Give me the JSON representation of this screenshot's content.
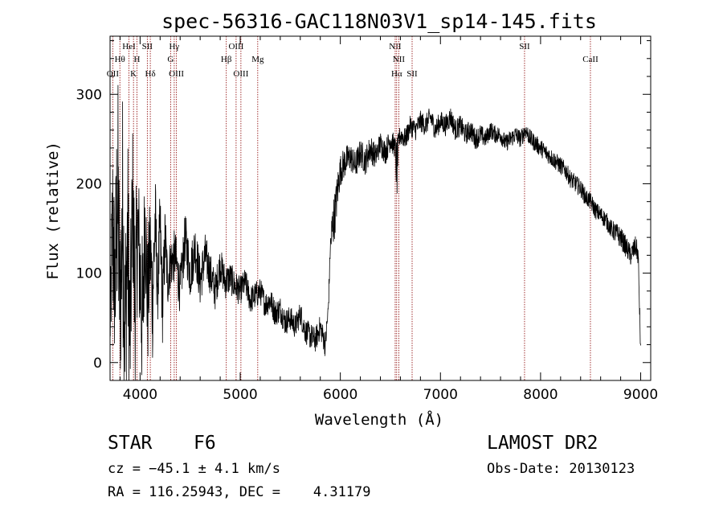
{
  "chart_data": {
    "type": "line",
    "title": "spec-56316-GAC118N03V1_sp14-145.fits",
    "xlabel": "Wavelength (Å)",
    "ylabel": "Flux (relative)",
    "xlim": [
      3700,
      9100
    ],
    "ylim": [
      -20,
      365
    ],
    "x_ticks": [
      4000,
      5000,
      6000,
      7000,
      8000,
      9000
    ],
    "y_ticks": [
      0,
      100,
      200,
      300
    ],
    "grid": false,
    "series_color": "#000000",
    "line_color": "#8b0000",
    "series": [
      {
        "x": [
          3700,
          3725,
          3750,
          3775,
          3800,
          3825,
          3850,
          3875,
          3900,
          3925,
          3950,
          3975,
          4000,
          4025,
          4050,
          4075,
          4100,
          4125,
          4150,
          4175,
          4200,
          4225,
          4250,
          4275,
          4300,
          4350,
          4400,
          4450,
          4500,
          4550,
          4600,
          4650,
          4700,
          4750,
          4800,
          4850,
          4900,
          4950,
          5000,
          5050,
          5100,
          5150,
          5200,
          5250,
          5300,
          5350,
          5400,
          5450,
          5500,
          5550,
          5600,
          5650,
          5700,
          5750,
          5800,
          5850,
          5880,
          5900,
          5920,
          5950,
          5980,
          6000,
          6050,
          6100,
          6150,
          6200,
          6250,
          6300,
          6350,
          6400,
          6450,
          6500,
          6550,
          6563,
          6580,
          6600,
          6650,
          6700,
          6750,
          6800,
          6850,
          6900,
          6950,
          7000,
          7050,
          7100,
          7150,
          7200,
          7250,
          7300,
          7350,
          7400,
          7450,
          7500,
          7550,
          7600,
          7650,
          7700,
          7750,
          7800,
          7850,
          7900,
          7950,
          8000,
          8050,
          8100,
          8150,
          8200,
          8250,
          8300,
          8350,
          8400,
          8450,
          8500,
          8550,
          8600,
          8650,
          8700,
          8750,
          8800,
          8850,
          8900,
          8950,
          8975,
          9000
        ],
        "y": [
          30,
          150,
          80,
          200,
          60,
          170,
          40,
          140,
          20,
          185,
          60,
          150,
          100,
          40,
          170,
          60,
          130,
          70,
          160,
          80,
          150,
          60,
          140,
          90,
          110,
          120,
          80,
          140,
          100,
          130,
          90,
          120,
          100,
          80,
          110,
          90,
          95,
          85,
          80,
          90,
          70,
          75,
          80,
          65,
          70,
          55,
          60,
          45,
          50,
          40,
          55,
          35,
          30,
          25,
          40,
          20,
          60,
          130,
          150,
          170,
          200,
          215,
          225,
          230,
          220,
          235,
          225,
          240,
          230,
          245,
          235,
          250,
          240,
          210,
          245,
          255,
          250,
          265,
          260,
          270,
          265,
          275,
          260,
          270,
          265,
          275,
          260,
          265,
          255,
          260,
          250,
          255,
          250,
          260,
          255,
          255,
          245,
          250,
          255,
          250,
          260,
          250,
          245,
          240,
          235,
          230,
          225,
          220,
          215,
          205,
          200,
          195,
          185,
          180,
          170,
          165,
          160,
          150,
          145,
          140,
          130,
          120,
          130,
          120,
          10
        ],
        "noise": [
          20,
          120,
          90,
          150,
          100,
          140,
          110,
          130,
          100,
          90,
          110,
          80,
          90,
          100,
          70,
          80,
          60,
          70,
          60,
          40,
          50,
          45,
          40,
          30,
          30,
          30,
          28,
          30,
          30,
          28,
          28,
          25,
          24,
          22,
          20,
          20,
          18,
          18,
          16,
          16,
          16,
          16,
          15,
          15,
          15,
          15,
          15,
          15,
          14,
          14,
          14,
          14,
          15,
          14,
          14,
          14,
          12,
          10,
          30,
          25,
          22,
          18,
          18,
          16,
          16,
          16,
          16,
          16,
          14,
          14,
          14,
          14,
          12,
          40,
          12,
          12,
          12,
          12,
          12,
          12,
          12,
          12,
          12,
          12,
          12,
          12,
          12,
          12,
          12,
          12,
          12,
          12,
          10,
          10,
          10,
          10,
          10,
          10,
          10,
          10,
          10,
          10,
          10,
          10,
          10,
          10,
          10,
          10,
          10,
          10,
          10,
          10,
          10,
          10,
          10,
          10,
          10,
          10,
          12,
          12,
          12,
          12,
          12,
          12,
          12
        ]
      }
    ],
    "lines": [
      {
        "label": "OII",
        "x": 3727,
        "row": 3
      },
      {
        "label": "Hθ",
        "x": 3798,
        "row": 2
      },
      {
        "label": "HeI",
        "x": 3889,
        "row": 1
      },
      {
        "label": "K",
        "x": 3934,
        "row": 3
      },
      {
        "label": "H",
        "x": 3969,
        "row": 2
      },
      {
        "label": "SII",
        "x": 4072,
        "row": 1
      },
      {
        "label": "Hδ",
        "x": 4102,
        "row": 3
      },
      {
        "label": "G",
        "x": 4305,
        "row": 2
      },
      {
        "label": "Hγ",
        "x": 4341,
        "row": 1
      },
      {
        "label": "OIII",
        "x": 4363,
        "row": 3
      },
      {
        "label": "Hβ",
        "x": 4861,
        "row": 2
      },
      {
        "label": "OIII",
        "x": 4959,
        "row": 1
      },
      {
        "label": "OIII",
        "x": 5007,
        "row": 3
      },
      {
        "label": "Mg",
        "x": 5175,
        "row": 2
      },
      {
        "label": "NII",
        "x": 6548,
        "row": 1
      },
      {
        "label": "Hα",
        "x": 6563,
        "row": 3
      },
      {
        "label": "NII",
        "x": 6584,
        "row": 2
      },
      {
        "label": "SII",
        "x": 6717,
        "row": 3
      },
      {
        "label": "SII",
        "x": 7840,
        "row": 1
      },
      {
        "label": "CaII",
        "x": 8498,
        "row": 2
      }
    ]
  },
  "info": {
    "class": "STAR",
    "subclass": "F6",
    "survey": "LAMOST DR2",
    "cz": "cz = −45.1 ± 4.1 km/s",
    "obs_date": "Obs-Date: 20130123",
    "coords": "RA = 116.25943, DEC =    4.31179"
  }
}
